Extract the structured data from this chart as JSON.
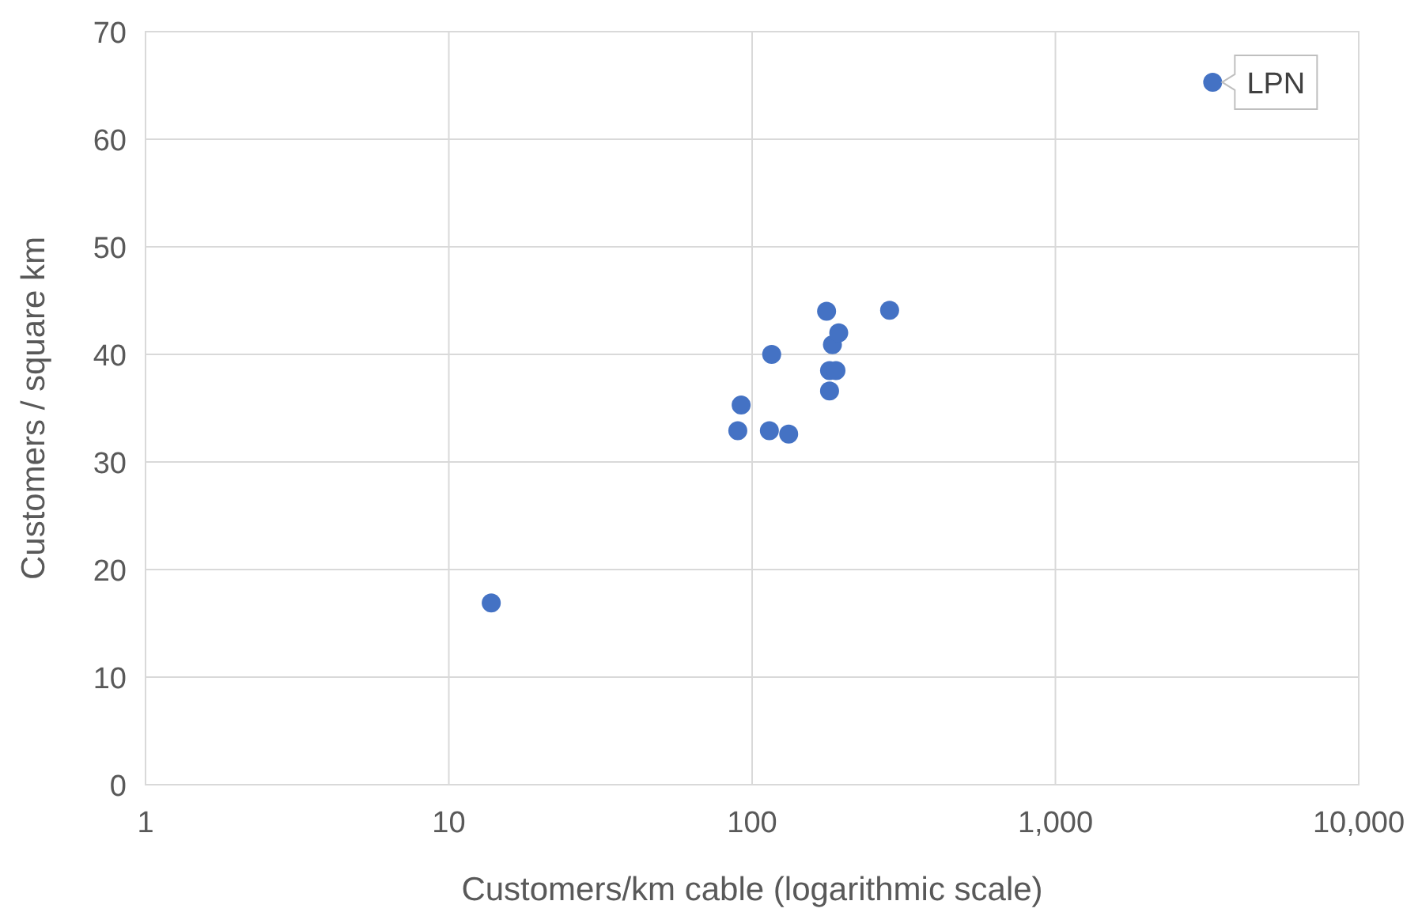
{
  "chart_data": {
    "type": "scatter",
    "xlabel": "Customers/km cable (logarithmic scale)",
    "ylabel": "Customers / square km",
    "x": [
      13.8,
      89.7,
      92,
      114,
      116,
      132,
      176,
      180,
      180,
      184,
      189,
      193,
      284,
      3300
    ],
    "values": [
      16.9,
      32.9,
      35.3,
      32.9,
      40,
      32.6,
      44,
      38.5,
      36.6,
      40.9,
      38.5,
      42,
      44.1,
      65.3
    ],
    "color": "#4472c4",
    "marker": "circle",
    "log": "x",
    "grid": true,
    "xlim": [
      1,
      10000
    ],
    "xticks": [
      1,
      10,
      100,
      {
        "value": 1000,
        "label": "1,000"
      },
      {
        "value": 10000,
        "label": "10,000"
      }
    ],
    "ylim": [
      0,
      70
    ],
    "yticks": [
      0,
      10,
      20,
      30,
      40,
      50,
      60,
      70
    ],
    "annotations": [
      {
        "text": "LPN",
        "x": 3300,
        "y": 65.3
      }
    ]
  }
}
